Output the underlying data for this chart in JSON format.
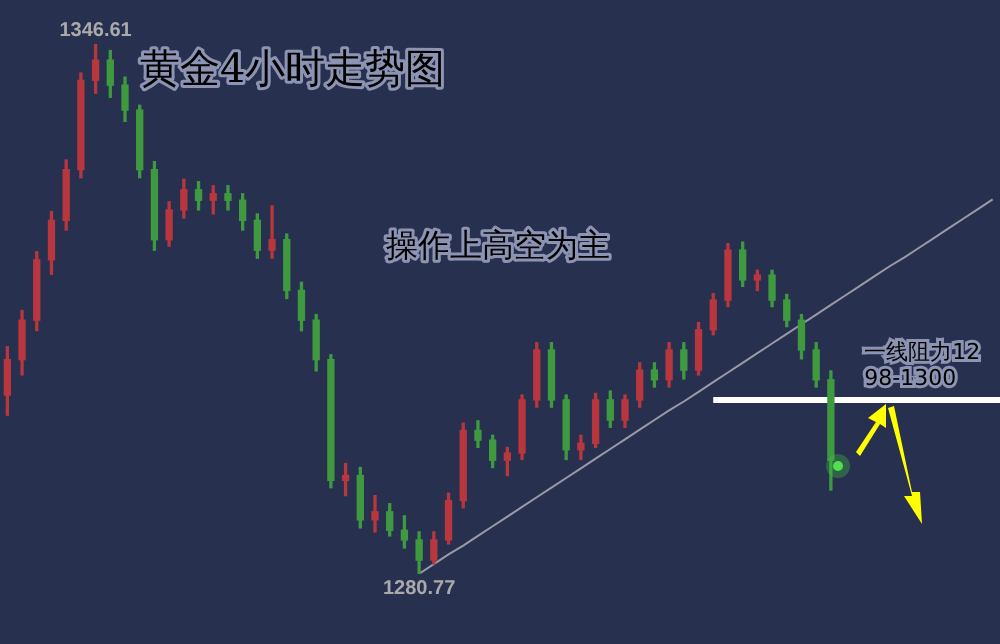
{
  "chart_data": {
    "type": "candlestick",
    "title": "黄金4小时走势图",
    "subtitle": "操作上高空为主",
    "categories": [
      null,
      null,
      null,
      null,
      null,
      null,
      null,
      null,
      null,
      null,
      null,
      null,
      null,
      null,
      null,
      null,
      null,
      null,
      null,
      null,
      null,
      null,
      null,
      null,
      null,
      null,
      null,
      null,
      null,
      null,
      null,
      null,
      null,
      null,
      null,
      null,
      null,
      null,
      null,
      null,
      null,
      null,
      null,
      null,
      null,
      null,
      null,
      null,
      null,
      null,
      null,
      null,
      null,
      null,
      null,
      null,
      null,
      null,
      null,
      null,
      null,
      null,
      null,
      null,
      null,
      null,
      null,
      null
    ],
    "ohlc": [
      [
        1303.0,
        1309.0,
        1300.5,
        1307.4
      ],
      [
        1307.4,
        1313.5,
        1305.5,
        1312.3
      ],
      [
        1312.3,
        1320.8,
        1311.0,
        1319.8
      ],
      [
        1319.8,
        1325.8,
        1318.0,
        1324.7
      ],
      [
        1324.7,
        1332.2,
        1323.5,
        1331.0
      ],
      [
        1331.0,
        1343.0,
        1330.0,
        1342.1
      ],
      [
        1342.1,
        1346.61,
        1340.5,
        1344.6
      ],
      [
        1344.6,
        1345.8,
        1340.0,
        1341.5
      ],
      [
        1341.5,
        1342.5,
        1337.0,
        1338.4
      ],
      [
        1338.4,
        1339.0,
        1330.0,
        1331.0
      ],
      [
        1331.0,
        1332.0,
        1321.0,
        1322.3
      ],
      [
        1322.3,
        1327.0,
        1321.5,
        1326.0
      ],
      [
        1326.0,
        1329.8,
        1325.0,
        1328.5
      ],
      [
        1328.5,
        1329.5,
        1326.0,
        1327.2
      ],
      [
        1327.2,
        1329.0,
        1325.5,
        1328.0
      ],
      [
        1328.0,
        1329.0,
        1326.0,
        1327.2
      ],
      [
        1327.2,
        1328.0,
        1323.5,
        1324.7
      ],
      [
        1324.7,
        1325.5,
        1320.0,
        1321.0
      ],
      [
        1321.0,
        1326.5,
        1320.0,
        1322.3
      ],
      [
        1322.3,
        1323.0,
        1315.0,
        1316.0
      ],
      [
        1316.0,
        1317.0,
        1311.0,
        1312.3
      ],
      [
        1312.3,
        1313.0,
        1306.0,
        1307.4
      ],
      [
        1307.4,
        1308.0,
        1291.5,
        1292.4
      ],
      [
        1292.4,
        1294.5,
        1290.5,
        1293.0
      ],
      [
        1293.0,
        1294.0,
        1286.5,
        1287.5
      ],
      [
        1287.5,
        1290.5,
        1286.0,
        1288.5
      ],
      [
        1288.5,
        1289.5,
        1285.5,
        1286.2
      ],
      [
        1286.2,
        1288.0,
        1284.0,
        1285.0
      ],
      [
        1285.0,
        1286.0,
        1280.77,
        1282.5
      ],
      [
        1282.5,
        1286.0,
        1282.0,
        1285.0
      ],
      [
        1285.0,
        1290.8,
        1284.5,
        1289.9
      ],
      [
        1289.9,
        1299.5,
        1289.0,
        1298.6
      ],
      [
        1298.6,
        1299.8,
        1296.5,
        1297.4
      ],
      [
        1297.4,
        1298.0,
        1294.0,
        1294.9
      ],
      [
        1294.9,
        1296.5,
        1293.0,
        1295.8
      ],
      [
        1295.8,
        1303.0,
        1295.0,
        1302.4
      ],
      [
        1302.4,
        1309.5,
        1301.5,
        1308.6
      ],
      [
        1308.6,
        1309.5,
        1301.5,
        1302.4
      ],
      [
        1302.4,
        1303.0,
        1295.0,
        1296.2
      ],
      [
        1296.2,
        1298.0,
        1295.0,
        1297.0
      ],
      [
        1297.0,
        1303.2,
        1296.5,
        1302.4
      ],
      [
        1302.4,
        1303.5,
        1299.0,
        1299.9
      ],
      [
        1299.9,
        1303.0,
        1299.0,
        1302.4
      ],
      [
        1302.4,
        1307.0,
        1301.5,
        1306.1
      ],
      [
        1306.1,
        1307.0,
        1304.0,
        1304.9
      ],
      [
        1304.9,
        1309.5,
        1304.0,
        1308.6
      ],
      [
        1308.6,
        1309.5,
        1305.0,
        1306.1
      ],
      [
        1306.1,
        1312.0,
        1305.5,
        1311.1
      ],
      [
        1311.1,
        1315.6,
        1310.5,
        1314.8
      ],
      [
        1314.8,
        1321.8,
        1314.0,
        1321.0
      ],
      [
        1321.0,
        1322.0,
        1316.5,
        1317.3
      ],
      [
        1317.3,
        1318.5,
        1316.0,
        1317.9
      ],
      [
        1317.9,
        1318.5,
        1314.0,
        1314.8
      ],
      [
        1314.8,
        1315.5,
        1311.5,
        1312.3
      ],
      [
        1312.3,
        1313.0,
        1307.5,
        1308.6
      ],
      [
        1308.6,
        1309.5,
        1304.0,
        1304.9
      ],
      [
        1304.9,
        1306.0,
        1291.2,
        1294.9
      ],
      null,
      null,
      null,
      null,
      null,
      null,
      null,
      null,
      null,
      null,
      null
    ],
    "colors": [
      "#b8363d",
      "#b8363d",
      "#b8363d",
      "#b8363d",
      "#b8363d",
      "#b8363d",
      "#b8363d",
      "#3f9a3f",
      "#3f9a3f",
      "#3f9a3f",
      "#3f9a3f",
      "#b8363d",
      "#b8363d",
      "#3f9a3f",
      "#b8363d",
      "#3f9a3f",
      "#3f9a3f",
      "#3f9a3f",
      "#b8363d",
      "#3f9a3f",
      "#3f9a3f",
      "#3f9a3f",
      "#3f9a3f",
      "#b8363d",
      "#3f9a3f",
      "#b8363d",
      "#3f9a3f",
      "#3f9a3f",
      "#3f9a3f",
      "#b8363d",
      "#b8363d",
      "#b8363d",
      "#3f9a3f",
      "#3f9a3f",
      "#b8363d",
      "#b8363d",
      "#b8363d",
      "#3f9a3f",
      "#3f9a3f",
      "#b8363d",
      "#b8363d",
      "#3f9a3f",
      "#b8363d",
      "#b8363d",
      "#3f9a3f",
      "#b8363d",
      "#3f9a3f",
      "#b8363d",
      "#b8363d",
      "#b8363d",
      "#3f9a3f",
      "#b8363d",
      "#3f9a3f",
      "#3f9a3f",
      "#3f9a3f",
      "#3f9a3f",
      "#3f9a3f",
      null,
      null,
      null,
      null,
      null,
      null,
      null,
      null,
      null,
      null,
      null
    ],
    "series": [
      {
        "type": "line",
        "color": "#9a9aa6",
        "values": [
          null,
          null,
          null,
          null,
          null,
          null,
          null,
          null,
          null,
          null,
          null,
          null,
          null,
          null,
          null,
          null,
          null,
          null,
          null,
          null,
          null,
          null,
          null,
          null,
          null,
          null,
          null,
          null,
          1280.8,
          1282.0,
          1283.2,
          1284.3,
          1285.5,
          1286.7,
          1287.9,
          1289.1,
          1290.3,
          1291.5,
          1292.7,
          1293.9,
          1295.1,
          1296.3,
          1297.5,
          1298.7,
          1299.9,
          1301.1,
          1302.2,
          1303.4,
          1304.6,
          1305.8,
          1307.0,
          1308.2,
          1309.4,
          1310.6,
          1311.8,
          1313.0,
          1314.2,
          1315.4,
          1316.6,
          1317.8,
          1319.0,
          1320.1,
          1321.3,
          1322.5,
          1323.7,
          1324.9,
          1326.1,
          1327.3
        ]
      }
    ],
    "ref_lines": [
      {
        "axis": "y",
        "value": 1302.4,
        "label": "一线阻力1298-1300",
        "color": "#ffffff"
      }
    ],
    "annotations": [
      {
        "text": "1346.61",
        "y": 1346.61
      },
      {
        "text": "1280.77",
        "y": 1280.77
      }
    ],
    "legend": false,
    "tick_labels": false
  }
}
